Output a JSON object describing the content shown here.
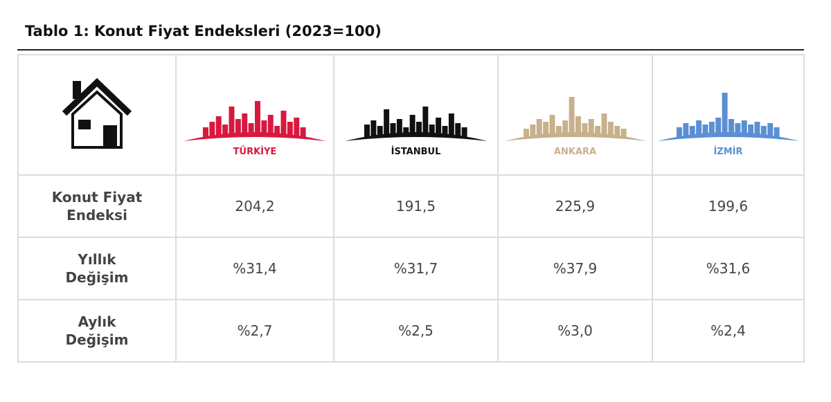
{
  "title": "Tablo 1: Konut Fiyat Endeksleri (2023=100)",
  "table": {
    "columns": [
      "TÜRKİYE",
      "İSTANBUL",
      "ANKARA",
      "İZMİR"
    ],
    "rows": [
      [
        "Konut Fiyat Endeksi",
        "204,2",
        "191,5",
        "225,9",
        "199,6"
      ],
      [
        "Yıllık Değişim",
        "%31,4",
        "%31,7",
        "%37,9",
        "%31,6"
      ],
      [
        "Aylık Değişim",
        "%2,7",
        "%2,5",
        "%3,0",
        "%2,4"
      ]
    ]
  }
}
